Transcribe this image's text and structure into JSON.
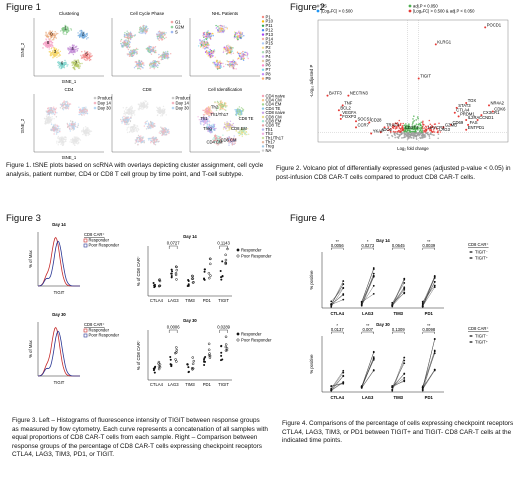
{
  "fig1": {
    "label": "Figure 1",
    "panel_titles": [
      "Clustering",
      "Cell Cycle Phase",
      "NHL Patients",
      "CD4",
      "CD8",
      "Cell Identification"
    ],
    "axis_y": "tSNE_2",
    "axis_x": "tSNE_1",
    "phase_legend": [
      "G1",
      "G2M",
      "S"
    ],
    "patients": [
      "P1",
      "P10",
      "P11",
      "P12",
      "P13",
      "P14",
      "P15",
      "P2",
      "P3",
      "P4",
      "P5",
      "P6",
      "P7",
      "P8",
      "P9"
    ],
    "timepoints_cd4": [
      "Product",
      "Day 14",
      "Day 30"
    ],
    "timepoints_cd8": [
      "Product",
      "Day 14",
      "Day 30"
    ],
    "cell_ids": [
      "CD4 naive",
      "CD4 CM",
      "CD4 EM",
      "CD4 TE",
      "CD8 naive",
      "CD8 CM",
      "CD8 EM",
      "CD8 TE",
      "Th1",
      "Th2",
      "Th1/Th17",
      "Th17",
      "Treg",
      "NA"
    ],
    "cell_id_labels": [
      "Th2",
      "Th1/Th17",
      "Th1",
      "Treg",
      "CD8 TE",
      "CD8 EM",
      "CD8 CM",
      "CD4 CM"
    ],
    "caption": "Figure 1. tSNE plots based on scRNA with overlays depicting cluster assignment, cell cycle analysis, patient number, CD4 or CD8 T cell group by time point, and T-cell subtype."
  },
  "fig2": {
    "label": "Figure 2",
    "legend": [
      "NS",
      "adj.P < 0.050",
      "|Log₂FC| > 0.500",
      "|Log₂FC| > 0.500 & adj.P < 0.050"
    ],
    "ylabel": "-Log₁₀ adjusted P",
    "xlabel": "Log₂ fold change",
    "genes": [
      "POCD1",
      "KLRG1",
      "TIGIT",
      "BATF3",
      "NECTIN3",
      "TNF",
      "BCL2",
      "VEGFA",
      "FOXP3",
      "SOCS1",
      "CD28",
      "CCR7",
      "TOX",
      "STAT3",
      "NR4A2",
      "CTLA4",
      "PRDM1",
      "IL2RA",
      "CCND1",
      "CD69",
      "FAS",
      "ENTPD1",
      "CX3CR1",
      "GZMB",
      "LAG3",
      "CDK6",
      "HAVCR2",
      "CD274",
      "TRAF4",
      "IDO1",
      "YKAP"
    ],
    "caption": "Figure 2. Volcano plot of differentially expressed genes (adjusted p-value < 0.05) in post-infusion CD8 CAR-T cells compared to product CD8 CAR-T cells."
  },
  "fig3": {
    "label": "Figure 3",
    "hist_ylabel": "% of Max",
    "hist_xlabel": "TIGIT",
    "hist_day14": "Day 14",
    "hist_day30": "Day 30",
    "legend_title": "CD8 CAR⁺",
    "legend_items": [
      "Responder",
      "Poor Responder"
    ],
    "bar_ylabel": "% of CD8 CAR⁺",
    "categories": [
      "CTLA4",
      "LAG3",
      "TIM3",
      "PD1",
      "TIGIT"
    ],
    "day14_title": "Day 14",
    "day30_title": "Day 30",
    "day14_p": [
      "0.0727",
      "0.1143"
    ],
    "day30_p": [
      "0.0006",
      "0.0289"
    ],
    "caption": "Figure 3. Left – Histograms of fluorescence intensity of TIGIT between response groups as measured by flow cytometry. Each curve represents a concatenation of all samples with equal proportions of CD8 CAR-T cells from each sample. Right – Comparison between response groups of the percentage of CD8 CAR-T cells expressing checkpoint receptors CTLA4, LAG3, TIM3, PD1, or TIGIT."
  },
  "fig4": {
    "label": "Figure 4",
    "ylabel": "% positive",
    "categories": [
      "CTLA4",
      "LAG3",
      "TIM3",
      "PD1"
    ],
    "legend_title": "CD8 CAR⁺",
    "legend_items": [
      "TIGIT⁻",
      "TIGIT⁺"
    ],
    "day14_title": "Day 14",
    "day30_title": "Day 30",
    "day14_p": [
      "0.0056",
      "0.0273",
      "0.0645",
      "0.0039"
    ],
    "day30_p": [
      "0.0137",
      "0.007",
      "0.1309",
      "0.0098"
    ],
    "stars": [
      "**",
      "*",
      "",
      "**"
    ],
    "stars30": [
      "*",
      "**",
      "",
      "**"
    ],
    "caption": "Figure 4. Comparisons of the percentage of cells expressing checkpoint receptors CTLA4, LAG3, TIM3, or PD1 between TIGIT+ and TIGIT- CD8 CAR-T cells at the indicated time points."
  }
}
